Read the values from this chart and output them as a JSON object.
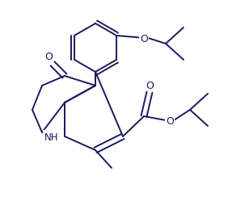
{
  "background_color": "#ffffff",
  "line_color": "#1a1a5e",
  "line_width": 1.4,
  "figsize": [
    2.82,
    2.55
  ],
  "dpi": 100,
  "xlim": [
    0,
    282
  ],
  "ylim": [
    0,
    255
  ]
}
